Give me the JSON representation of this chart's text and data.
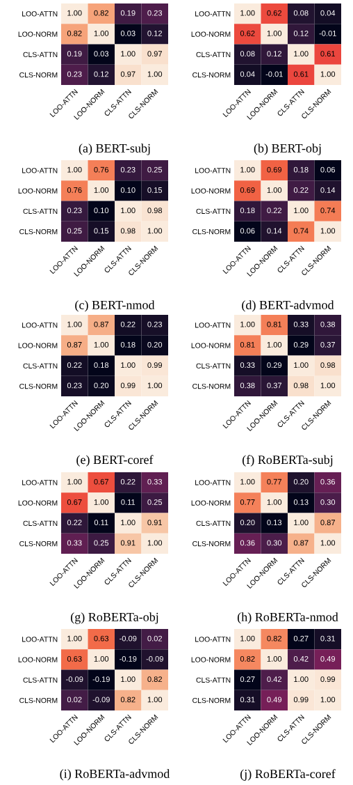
{
  "chart_data": [
    {
      "type": "heatmap",
      "title": "(a) BERT-subj",
      "categories": [
        "LOO-ATTN",
        "LOO-NORM",
        "CLS-ATTN",
        "CLS-NORM"
      ],
      "y_categories": [
        "LOO-ATTN",
        "LOO-NORM",
        "CLS-ATTN",
        "CLS-NORM"
      ],
      "cells": [
        [
          1.0,
          0.82,
          0.19,
          0.23
        ],
        [
          0.82,
          1.0,
          0.03,
          0.12
        ],
        [
          0.19,
          0.03,
          1.0,
          0.97
        ],
        [
          0.23,
          0.12,
          0.97,
          1.0
        ]
      ],
      "cell_labels": [
        [
          "1.00",
          "0.82",
          "0.19",
          "0.23"
        ],
        [
          "0.82",
          "1.00",
          "0.03",
          "0.12"
        ],
        [
          "0.19",
          "0.03",
          "1.00",
          "0.97"
        ],
        [
          "0.23",
          "0.12",
          "0.97",
          "1.00"
        ]
      ]
    },
    {
      "type": "heatmap",
      "title": "(b) BERT-obj",
      "categories": [
        "LOO-ATTN",
        "LOO-NORM",
        "CLS-ATTN",
        "CLS-NORM"
      ],
      "y_categories": [
        "LOO-ATTN",
        "LOO-NORM",
        "CLS-ATTN",
        "CLS-NORM"
      ],
      "cells": [
        [
          1.0,
          0.62,
          0.08,
          0.04
        ],
        [
          0.62,
          1.0,
          0.12,
          -0.01
        ],
        [
          0.08,
          0.12,
          1.0,
          0.61
        ],
        [
          0.04,
          -0.01,
          0.61,
          1.0
        ]
      ],
      "cell_labels": [
        [
          "1.00",
          "0.62",
          "0.08",
          "0.04"
        ],
        [
          "0.62",
          "1.00",
          "0.12",
          "-0.01"
        ],
        [
          "0.08",
          "0.12",
          "1.00",
          "0.61"
        ],
        [
          "0.04",
          "-0.01",
          "0.61",
          "1.00"
        ]
      ]
    },
    {
      "type": "heatmap",
      "title": "(c) BERT-nmod",
      "categories": [
        "LOO-ATTN",
        "LOO-NORM",
        "CLS-ATTN",
        "CLS-NORM"
      ],
      "y_categories": [
        "LOO-ATTN",
        "LOO-NORM",
        "CLS-ATTN",
        "CLS-NORM"
      ],
      "cells": [
        [
          1.0,
          0.76,
          0.23,
          0.25
        ],
        [
          0.76,
          1.0,
          0.1,
          0.15
        ],
        [
          0.23,
          0.1,
          1.0,
          0.98
        ],
        [
          0.25,
          0.15,
          0.98,
          1.0
        ]
      ],
      "cell_labels": [
        [
          "1.00",
          "0.76",
          "0.23",
          "0.25"
        ],
        [
          "0.76",
          "1.00",
          "0.10",
          "0.15"
        ],
        [
          "0.23",
          "0.10",
          "1.00",
          "0.98"
        ],
        [
          "0.25",
          "0.15",
          "0.98",
          "1.00"
        ]
      ]
    },
    {
      "type": "heatmap",
      "title": "(d) BERT-advmod",
      "categories": [
        "LOO-ATTN",
        "LOO-NORM",
        "CLS-ATTN",
        "CLS-NORM"
      ],
      "y_categories": [
        "LOO-ATTN",
        "LOO-NORM",
        "CLS-ATTN",
        "CLS-NORM"
      ],
      "cells": [
        [
          1.0,
          0.69,
          0.18,
          0.06
        ],
        [
          0.69,
          1.0,
          0.22,
          0.14
        ],
        [
          0.18,
          0.22,
          1.0,
          0.74
        ],
        [
          0.06,
          0.14,
          0.74,
          1.0
        ]
      ],
      "cell_labels": [
        [
          "1.00",
          "0.69",
          "0.18",
          "0.06"
        ],
        [
          "0.69",
          "1.00",
          "0.22",
          "0.14"
        ],
        [
          "0.18",
          "0.22",
          "1.00",
          "0.74"
        ],
        [
          "0.06",
          "0.14",
          "0.74",
          "1.00"
        ]
      ]
    },
    {
      "type": "heatmap",
      "title": "(e) BERT-coref",
      "categories": [
        "LOO-ATTN",
        "LOO-NORM",
        "CLS-ATTN",
        "CLS-NORM"
      ],
      "y_categories": [
        "LOO-ATTN",
        "LOO-NORM",
        "CLS-ATTN",
        "CLS-NORM"
      ],
      "cells": [
        [
          1.0,
          0.87,
          0.22,
          0.23
        ],
        [
          0.87,
          1.0,
          0.18,
          0.2
        ],
        [
          0.22,
          0.18,
          1.0,
          0.99
        ],
        [
          0.23,
          0.2,
          0.99,
          1.0
        ]
      ],
      "cell_labels": [
        [
          "1.00",
          "0.87",
          "0.22",
          "0.23"
        ],
        [
          "0.87",
          "1.00",
          "0.18",
          "0.20"
        ],
        [
          "0.22",
          "0.18",
          "1.00",
          "0.99"
        ],
        [
          "0.23",
          "0.20",
          "0.99",
          "1.00"
        ]
      ]
    },
    {
      "type": "heatmap",
      "title": "(f) RoBERTa-subj",
      "categories": [
        "LOO-ATTN",
        "LOO-NORM",
        "CLS-ATTN",
        "CLS-NORM"
      ],
      "y_categories": [
        "LOO-ATTN",
        "LOO-NORM",
        "CLS-ATTN",
        "CLS-NORM"
      ],
      "cells": [
        [
          1.0,
          0.81,
          0.33,
          0.38
        ],
        [
          0.81,
          1.0,
          0.29,
          0.37
        ],
        [
          0.33,
          0.29,
          1.0,
          0.98
        ],
        [
          0.38,
          0.37,
          0.98,
          1.0
        ]
      ],
      "cell_labels": [
        [
          "1.00",
          "0.81",
          "0.33",
          "0.38"
        ],
        [
          "0.81",
          "1.00",
          "0.29",
          "0.37"
        ],
        [
          "0.33",
          "0.29",
          "1.00",
          "0.98"
        ],
        [
          "0.38",
          "0.37",
          "0.98",
          "1.00"
        ]
      ]
    },
    {
      "type": "heatmap",
      "title": "(g) RoBERTa-obj",
      "categories": [
        "LOO-ATTN",
        "LOO-NORM",
        "CLS-ATTN",
        "CLS-NORM"
      ],
      "y_categories": [
        "LOO-ATTN",
        "LOO-NORM",
        "CLS-ATTN",
        "CLS-NORM"
      ],
      "cells": [
        [
          1.0,
          0.67,
          0.22,
          0.33
        ],
        [
          0.67,
          1.0,
          0.11,
          0.25
        ],
        [
          0.22,
          0.11,
          1.0,
          0.91
        ],
        [
          0.33,
          0.25,
          0.91,
          1.0
        ]
      ],
      "cell_labels": [
        [
          "1.00",
          "0.67",
          "0.22",
          "0.33"
        ],
        [
          "0.67",
          "1.00",
          "0.11",
          "0.25"
        ],
        [
          "0.22",
          "0.11",
          "1.00",
          "0.91"
        ],
        [
          "0.33",
          "0.25",
          "0.91",
          "1.00"
        ]
      ]
    },
    {
      "type": "heatmap",
      "title": "(h) RoBERTa-nmod",
      "categories": [
        "LOO-ATTN",
        "LOO-NORM",
        "CLS-ATTN",
        "CLS-NORM"
      ],
      "y_categories": [
        "LOO-ATTN",
        "LOO-NORM",
        "CLS-ATTN",
        "CLS-NORM"
      ],
      "cells": [
        [
          1.0,
          0.77,
          0.2,
          0.36
        ],
        [
          0.77,
          1.0,
          0.13,
          0.3
        ],
        [
          0.2,
          0.13,
          1.0,
          0.87
        ],
        [
          0.36,
          0.3,
          0.87,
          1.0
        ]
      ],
      "cell_labels": [
        [
          "1.00",
          "0.77",
          "0.20",
          "0.36"
        ],
        [
          "0.77",
          "1.00",
          "0.13",
          "0.30"
        ],
        [
          "0.20",
          "0.13",
          "1.00",
          "0.87"
        ],
        [
          "0.36",
          "0.30",
          "0.87",
          "1.00"
        ]
      ]
    },
    {
      "type": "heatmap",
      "title": "(i) RoBERTa-advmod",
      "categories": [
        "LOO-ATTN",
        "LOO-NORM",
        "CLS-ATTN",
        "CLS-NORM"
      ],
      "y_categories": [
        "LOO-ATTN",
        "LOO-NORM",
        "CLS-ATTN",
        "CLS-NORM"
      ],
      "cells": [
        [
          1.0,
          0.63,
          -0.09,
          0.02
        ],
        [
          0.63,
          1.0,
          -0.19,
          -0.09
        ],
        [
          -0.09,
          -0.19,
          1.0,
          0.82
        ],
        [
          0.02,
          -0.09,
          0.82,
          1.0
        ]
      ],
      "cell_labels": [
        [
          "1.00",
          "0.63",
          "-0.09",
          "0.02"
        ],
        [
          "0.63",
          "1.00",
          "-0.19",
          "-0.09"
        ],
        [
          "-0.09",
          "-0.19",
          "1.00",
          "0.82"
        ],
        [
          "0.02",
          "-0.09",
          "0.82",
          "1.00"
        ]
      ]
    },
    {
      "type": "heatmap",
      "title": "(j) RoBERTa-coref",
      "categories": [
        "LOO-ATTN",
        "LOO-NORM",
        "CLS-ATTN",
        "CLS-NORM"
      ],
      "y_categories": [
        "LOO-ATTN",
        "LOO-NORM",
        "CLS-ATTN",
        "CLS-NORM"
      ],
      "cells": [
        [
          1.0,
          0.82,
          0.27,
          0.31
        ],
        [
          0.82,
          1.0,
          0.42,
          0.49
        ],
        [
          0.27,
          0.42,
          1.0,
          0.99
        ],
        [
          0.31,
          0.49,
          0.99,
          1.0
        ]
      ],
      "cell_labels": [
        [
          "1.00",
          "0.82",
          "0.27",
          "0.31"
        ],
        [
          "0.82",
          "1.00",
          "0.42",
          "0.49"
        ],
        [
          "0.27",
          "0.42",
          "1.00",
          "0.99"
        ],
        [
          "0.31",
          "0.49",
          "0.99",
          "1.00"
        ]
      ]
    }
  ]
}
